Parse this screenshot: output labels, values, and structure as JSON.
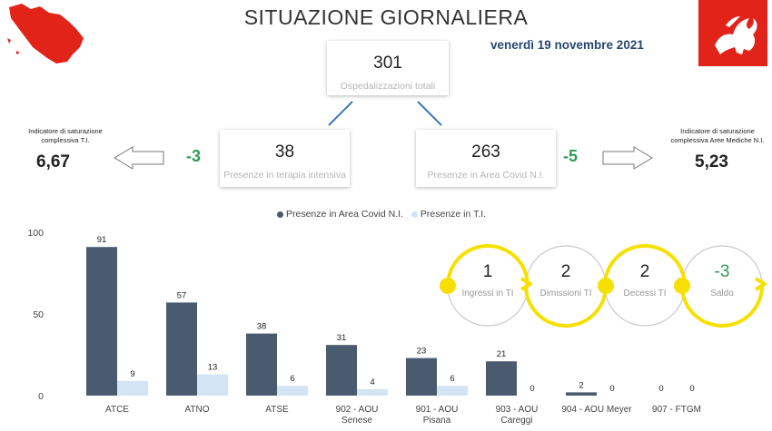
{
  "header": {
    "title": "SITUAZIONE GIORNALIERA",
    "date": "venerdì 19 novembre 2021",
    "colors": {
      "title": "#333333",
      "date": "#27476e",
      "flag": "#e2231a",
      "map": "#e2231a"
    },
    "icons": {
      "left": "tuscany-map-icon",
      "right": "pegasus-flag-icon"
    }
  },
  "kpi": {
    "total": {
      "value": "301",
      "label": "Ospedalizzazioni totali"
    },
    "ti": {
      "value": "38",
      "label": "Presenze in terapia intensiva",
      "delta": "-3"
    },
    "covid": {
      "value": "263",
      "label": "Presenze in Area Covid N.I.",
      "delta": "-5"
    }
  },
  "saturation": {
    "ti": {
      "label_lines": [
        "Indicatore di saturazione",
        "complessiva T.I."
      ],
      "value": "6,67"
    },
    "am": {
      "label_lines": [
        "Indicatore di saturazione",
        "complessiva Aree Mediche N.I."
      ],
      "value": "5,23"
    }
  },
  "flow": {
    "items": [
      {
        "value": "1",
        "label": "Ingressi in TI"
      },
      {
        "value": "2",
        "label": "Dimissioni TI"
      },
      {
        "value": "2",
        "label": "Decessi TI"
      },
      {
        "value": "-3",
        "label": "Saldo"
      }
    ],
    "colors": {
      "arc": "#f7e000",
      "circle": "#c8c8c8",
      "saldo": "#2f9a55"
    }
  },
  "chart_data": {
    "type": "bar",
    "categories": [
      [
        "ATCE"
      ],
      [
        "ATNO"
      ],
      [
        "ATSE"
      ],
      [
        "902 - AOU",
        "Senese"
      ],
      [
        "901 - AOU",
        "Pisana"
      ],
      [
        "903 - AOU",
        "Careggi"
      ],
      [
        "904 - AOU Meyer"
      ],
      [
        "907 - FTGM"
      ]
    ],
    "series": [
      {
        "name": "Presenze in Area Covid N.I.",
        "color": "#4a5b70",
        "values": [
          91,
          57,
          38,
          31,
          23,
          21,
          2,
          0
        ]
      },
      {
        "name": "Presenze in T.I.",
        "color": "#d3e5f5",
        "values": [
          9,
          13,
          6,
          4,
          6,
          0,
          0,
          0
        ]
      }
    ],
    "ylim": [
      0,
      100
    ],
    "yticks": [
      "0",
      "50",
      "100"
    ],
    "grid": false,
    "legend": "top"
  }
}
